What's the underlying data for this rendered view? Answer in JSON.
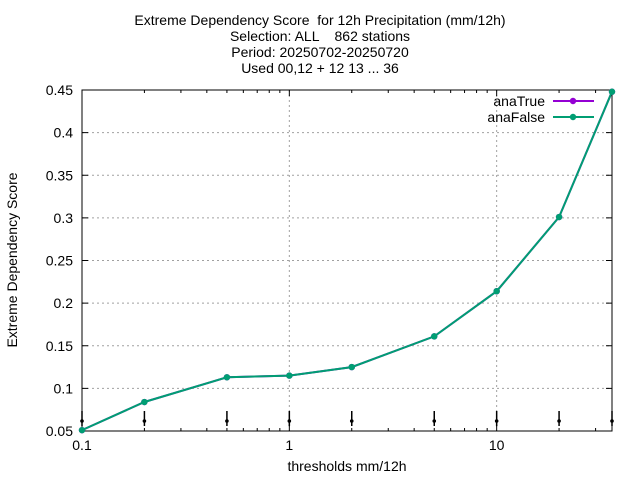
{
  "chart_data": {
    "type": "line",
    "title_lines": [
      "Extreme Dependency Score  for 12h Precipitation (mm/12h)",
      "Selection: ALL    862 stations",
      "Period: 20250702-20250720",
      "Used 00,12 + 12 13 ... 36"
    ],
    "xlabel": "thresholds mm/12h",
    "ylabel": "Extreme Dependency Score",
    "xscale": "log",
    "xlim": [
      0.1,
      36
    ],
    "ylim": [
      0.05,
      0.45
    ],
    "xticks": [
      {
        "value": 0.1,
        "label": "0.1"
      },
      {
        "value": 1,
        "label": "1"
      },
      {
        "value": 10,
        "label": "10"
      }
    ],
    "yticks": [
      {
        "value": 0.05,
        "label": "0.05"
      },
      {
        "value": 0.1,
        "label": "0.1"
      },
      {
        "value": 0.15,
        "label": "0.15"
      },
      {
        "value": 0.2,
        "label": "0.2"
      },
      {
        "value": 0.25,
        "label": "0.25"
      },
      {
        "value": 0.3,
        "label": "0.3"
      },
      {
        "value": 0.35,
        "label": "0.35"
      },
      {
        "value": 0.4,
        "label": "0.4"
      },
      {
        "value": 0.45,
        "label": "0.45"
      }
    ],
    "grid": true,
    "legend_position": "top-right",
    "x": [
      0.1,
      0.2,
      0.5,
      1,
      2,
      5,
      10,
      20,
      36
    ],
    "series": [
      {
        "name": "anaTrue",
        "color": "#9400d3",
        "values": [
          0.051,
          0.084,
          0.113,
          0.115,
          0.125,
          0.161,
          0.214,
          0.301,
          0.448
        ]
      },
      {
        "name": "anaFalse",
        "color": "#009e73",
        "values": [
          0.051,
          0.084,
          0.113,
          0.115,
          0.125,
          0.161,
          0.214,
          0.301,
          0.448
        ]
      }
    ]
  }
}
